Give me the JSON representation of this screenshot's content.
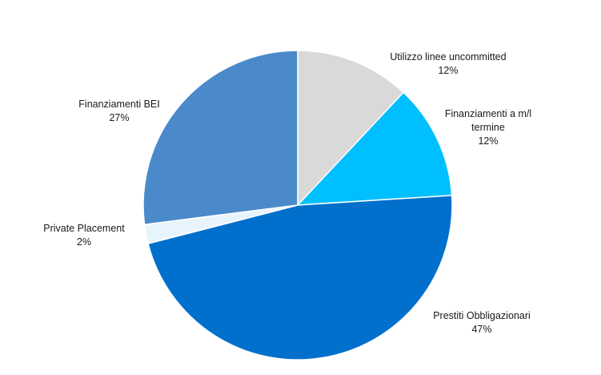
{
  "chart_data": {
    "type": "pie",
    "title": "",
    "slices": [
      {
        "name": "Utilizzo linee uncommitted",
        "label_lines": [
          "Utilizzo linee uncommitted"
        ],
        "value": 12,
        "value_label": "12%",
        "color": "#d9d9d9"
      },
      {
        "name": "Finanziamenti a m/l termine",
        "label_lines": [
          "Finanziamenti a m/l",
          "termine"
        ],
        "value": 12,
        "value_label": "12%",
        "color": "#00bfff"
      },
      {
        "name": "Prestiti Obbligazionari",
        "label_lines": [
          "Prestiti Obbligazionari"
        ],
        "value": 47,
        "value_label": "47%",
        "color": "#0070cc"
      },
      {
        "name": "Private Placement",
        "label_lines": [
          "Private Placement"
        ],
        "value": 2,
        "value_label": "2%",
        "color": "#e8f4fc"
      },
      {
        "name": "Finanziamenti BEI",
        "label_lines": [
          "Finanziamenti BEI"
        ],
        "value": 27,
        "value_label": "27%",
        "color": "#4a8acb"
      }
    ]
  }
}
